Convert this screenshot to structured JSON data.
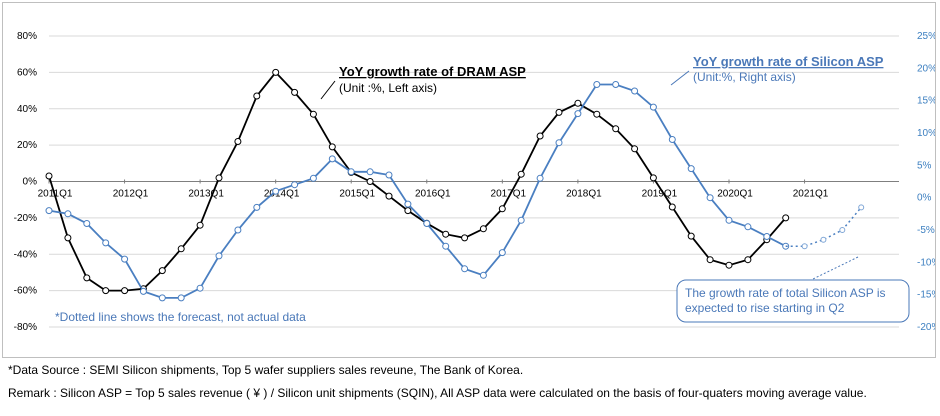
{
  "chart_data": {
    "type": "line",
    "x_tick_labels": [
      "2011Q1",
      "2012Q1",
      "2013Q1",
      "2014Q1",
      "2015Q1",
      "2016Q1",
      "2017Q1",
      "2018Q1",
      "2019Q1",
      "2020Q1",
      "2021Q1"
    ],
    "y_left": {
      "ylim": [
        -80,
        80
      ],
      "ticks": [
        "80%",
        "60%",
        "40%",
        "20%",
        "0%",
        "-20%",
        "-40%",
        "-60%",
        "-80%"
      ]
    },
    "y_right": {
      "ylim": [
        -20,
        25
      ],
      "ticks": [
        "25%",
        "20%",
        "15%",
        "10%",
        "5%",
        "0%",
        "-5%",
        "-10%",
        "-15%",
        "-20%"
      ]
    },
    "series": [
      {
        "name": "YoY growth rate of DRAM ASP",
        "unit_note": "(Unit :%, Left axis)",
        "axis": "left",
        "color": "#000000",
        "x": [
          2011.0,
          2011.25,
          2011.5,
          2011.75,
          2012.0,
          2012.25,
          2012.5,
          2012.75,
          2013.0,
          2013.25,
          2013.5,
          2013.75,
          2014.0,
          2014.25,
          2014.5,
          2014.75,
          2015.0,
          2015.25,
          2015.5,
          2015.75,
          2016.0,
          2016.25,
          2016.5,
          2016.75,
          2017.0,
          2017.25,
          2017.5,
          2017.75,
          2018.0,
          2018.25,
          2018.5,
          2018.75,
          2019.0,
          2019.25,
          2019.5,
          2019.75,
          2020.0,
          2020.25,
          2020.5,
          2020.75
        ],
        "values": [
          3,
          -31,
          -53,
          -60,
          -60,
          -59,
          -49,
          -37,
          -24,
          2,
          22,
          47,
          60,
          49,
          37,
          19,
          5,
          0,
          -8,
          -16,
          -23,
          -29,
          -31,
          -26,
          -15,
          4,
          25,
          38,
          43,
          37,
          29,
          18,
          2,
          -14,
          -30,
          -43,
          -46,
          -43,
          -32,
          -20
        ]
      },
      {
        "name": "YoY growth rate of Silicon ASP",
        "unit_note": "(Unit:%, Right axis)",
        "axis": "right",
        "color": "#4a7fc1",
        "x": [
          2011.0,
          2011.25,
          2011.5,
          2011.75,
          2012.0,
          2012.25,
          2012.5,
          2012.75,
          2013.0,
          2013.25,
          2013.5,
          2013.75,
          2014.0,
          2014.25,
          2014.5,
          2014.75,
          2015.0,
          2015.25,
          2015.5,
          2015.75,
          2016.0,
          2016.25,
          2016.5,
          2016.75,
          2017.0,
          2017.25,
          2017.5,
          2017.75,
          2018.0,
          2018.25,
          2018.5,
          2018.75,
          2019.0,
          2019.25,
          2019.5,
          2019.75,
          2020.0,
          2020.25,
          2020.5,
          2020.75
        ],
        "values": [
          -2,
          -2.5,
          -4,
          -7,
          -9.5,
          -14.5,
          -15.5,
          -15.5,
          -14,
          -9,
          -5,
          -1.5,
          1,
          2,
          3,
          6,
          4,
          4,
          3.5,
          -1,
          -4,
          -7.5,
          -11,
          -12,
          -8.5,
          -3.5,
          3,
          8.5,
          13,
          17.5,
          17.5,
          16.5,
          14,
          9,
          4.5,
          0,
          -3.5,
          -4.5,
          -6,
          -7.5
        ]
      },
      {
        "name": "Silicon ASP forecast",
        "axis": "right",
        "color": "#4a7fc1",
        "dashed": true,
        "x": [
          2020.75,
          2021.0,
          2021.25,
          2021.5,
          2021.75
        ],
        "values": [
          -7.5,
          -7.5,
          -6.5,
          -5,
          -1.5
        ]
      }
    ],
    "annotations": {
      "forecast_note": "*Dotted line shows the forecast, not actual data",
      "callout_lines": [
        "The growth rate of total Silicon ASP is",
        "expected to rise starting in Q2"
      ]
    }
  },
  "footer": {
    "source": "*Data Source : SEMI Silicon shipments, Top 5 wafer suppliers sales reveune, The Bank of Korea.",
    "remark": "Remark : Silicon ASP = Top 5 sales revenue ( ¥ ) / Silicon unit shipments (SQIN), All ASP data were calculated on the basis of  four-quaters moving average value."
  }
}
